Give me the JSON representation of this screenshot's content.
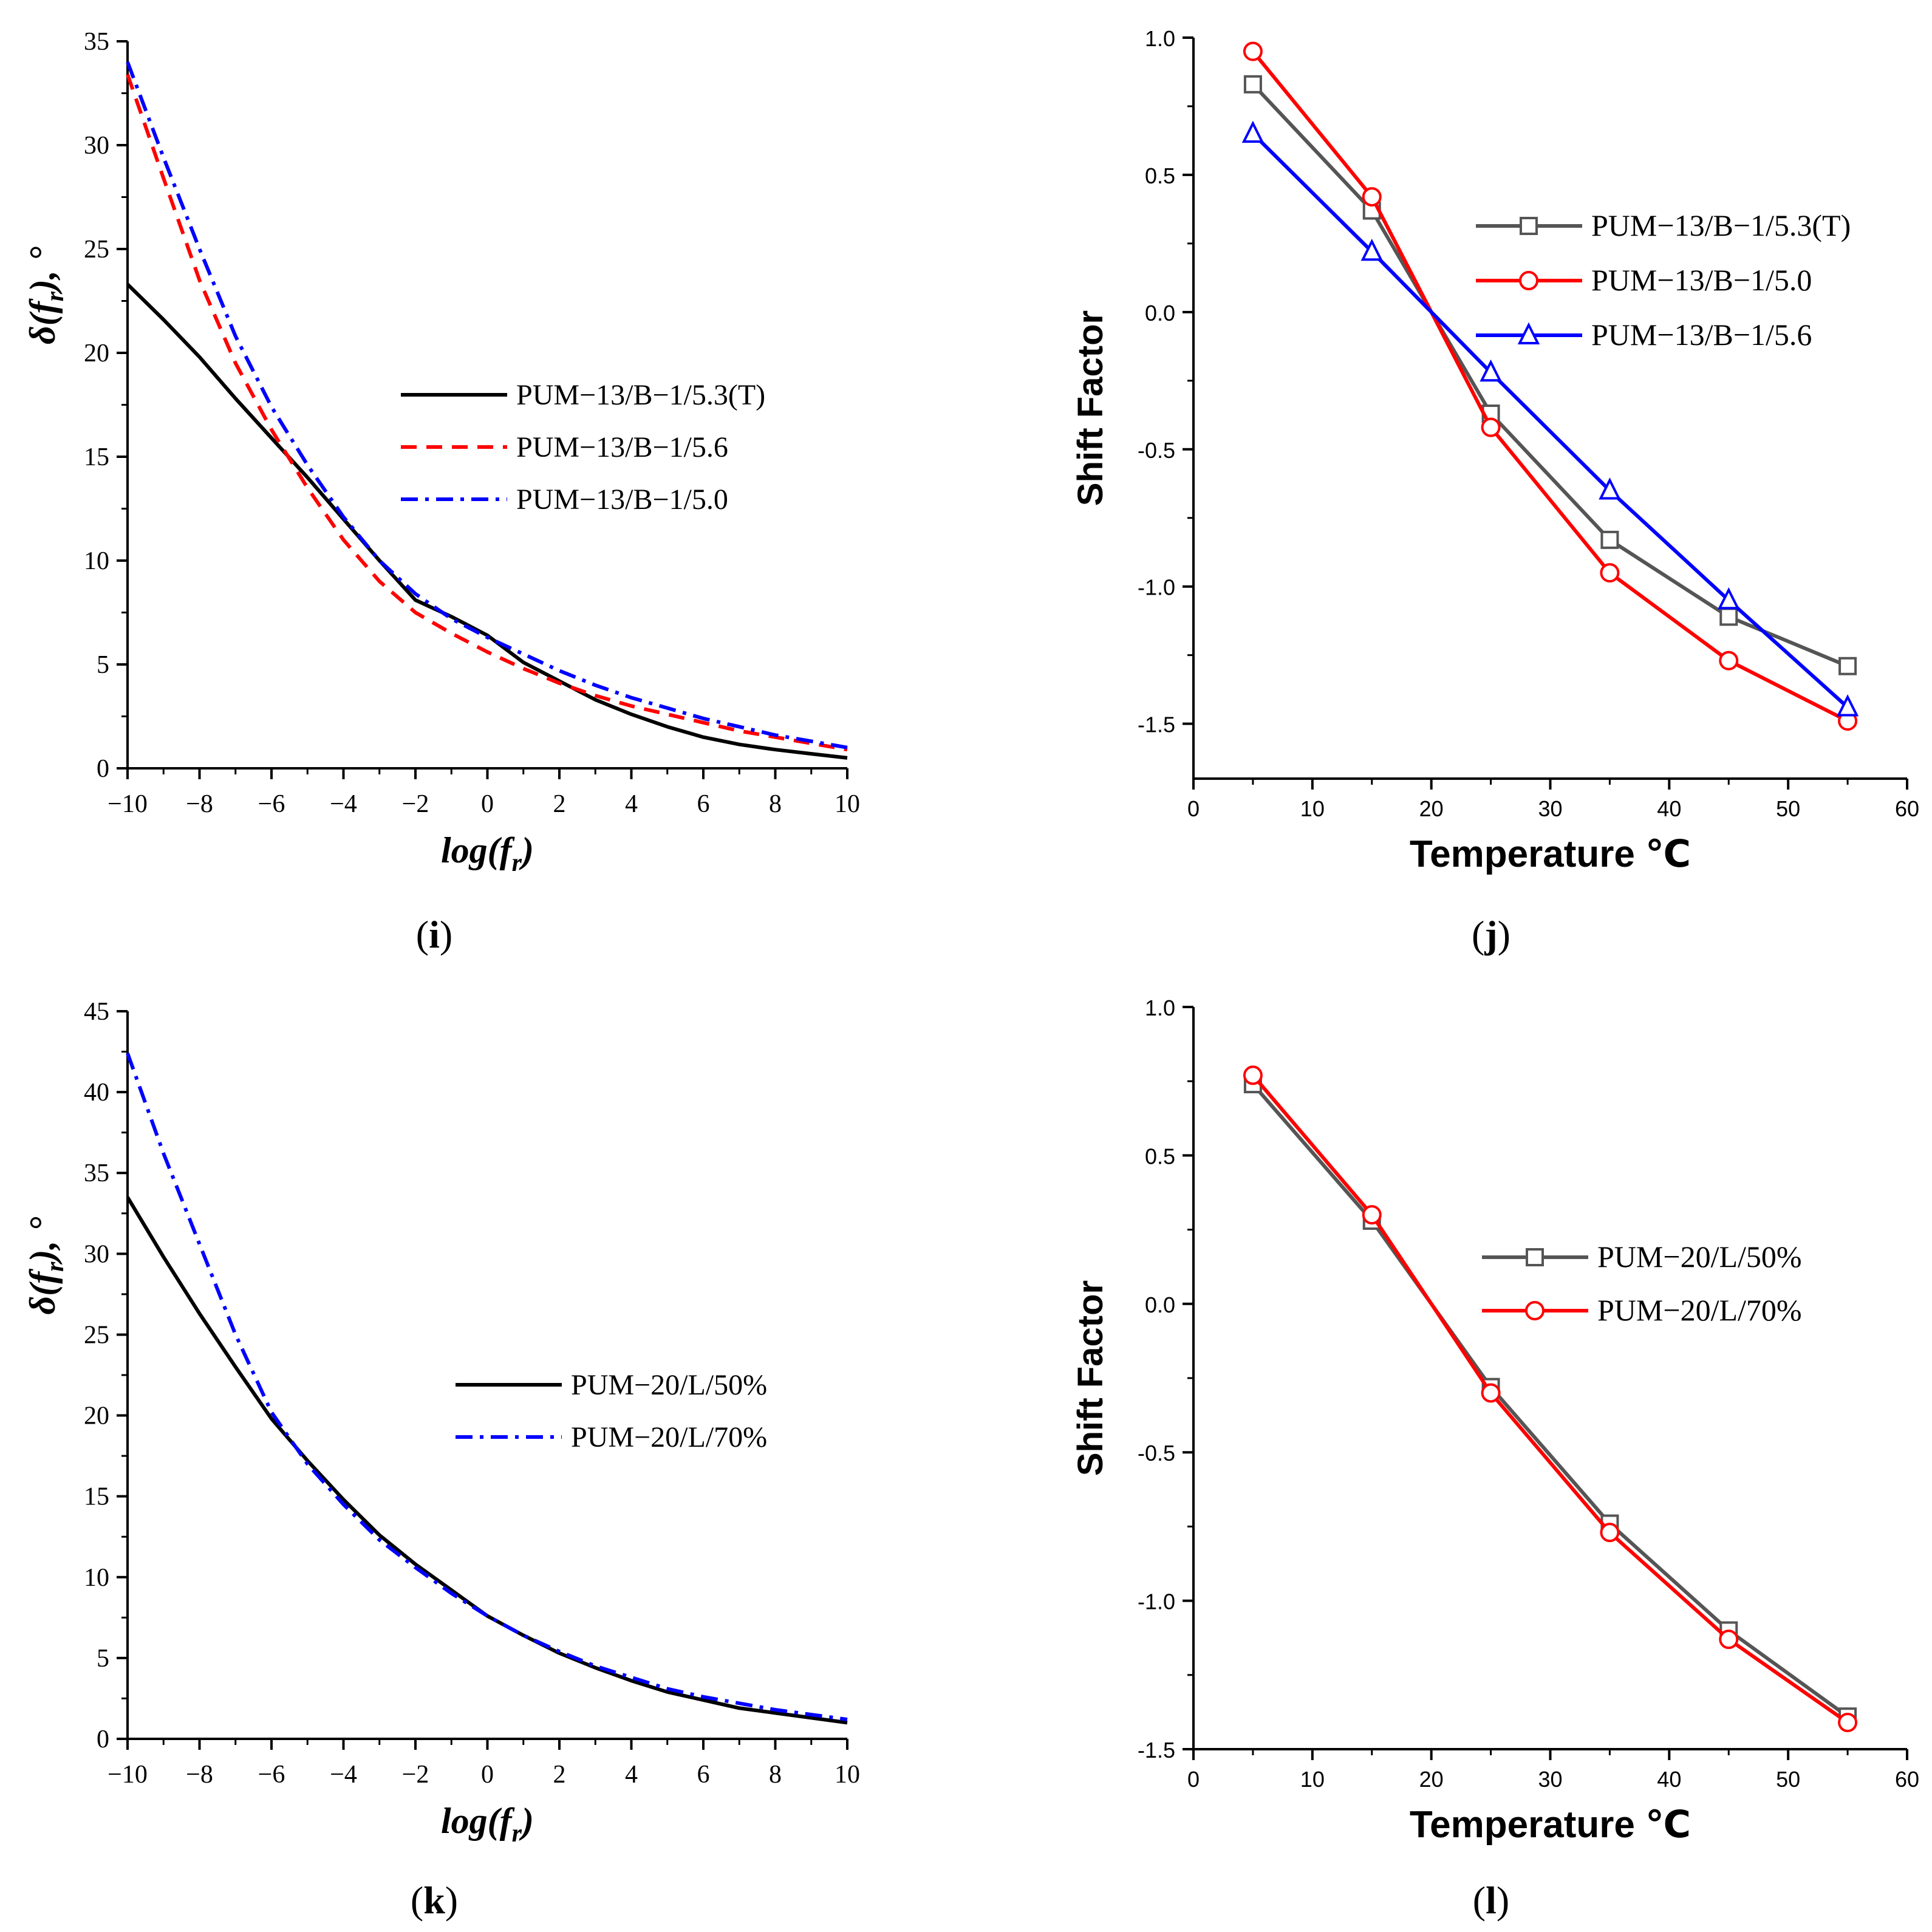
{
  "chart_data": [
    {
      "id": "i",
      "type": "line",
      "panel_label": "i",
      "xlabel": "log(f_r)",
      "ylabel": "δ(f_r), °",
      "xlim": [
        -10,
        10
      ],
      "ylim": [
        0,
        35
      ],
      "xticks": [
        -10,
        -8,
        -6,
        -4,
        -2,
        0,
        2,
        4,
        6,
        8,
        10
      ],
      "yticks": [
        0,
        5,
        10,
        15,
        20,
        25,
        30,
        35
      ],
      "legend_position": "center-right",
      "series": [
        {
          "name": "PUM−13/B−1/5.3(T)",
          "color": "#000000",
          "style": "solid",
          "x": [
            -10,
            -9,
            -8,
            -7,
            -6,
            -5,
            -4,
            -3,
            -2,
            -1,
            0,
            1,
            2,
            3,
            4,
            5,
            6,
            7,
            8,
            9,
            10
          ],
          "y": [
            23.3,
            21.6,
            19.8,
            17.8,
            15.9,
            14.0,
            12.0,
            10.0,
            8.1,
            7.3,
            6.4,
            5.1,
            4.2,
            3.3,
            2.6,
            2.0,
            1.5,
            1.15,
            0.9,
            0.7,
            0.5
          ]
        },
        {
          "name": "PUM−13/B−1/5.6",
          "color": "#ff0000",
          "style": "dashed",
          "x": [
            -10,
            -9,
            -8,
            -7,
            -6,
            -5,
            -4,
            -3,
            -2,
            -1,
            0,
            1,
            2,
            3,
            4,
            5,
            6,
            7,
            8,
            9,
            10
          ],
          "y": [
            33.4,
            28.4,
            23.5,
            19.5,
            16.3,
            13.5,
            11.0,
            9.0,
            7.5,
            6.5,
            5.6,
            4.8,
            4.1,
            3.5,
            3.0,
            2.6,
            2.2,
            1.8,
            1.5,
            1.2,
            0.9
          ]
        },
        {
          "name": "PUM−13/B−1/5.0",
          "color": "#0000ff",
          "style": "dashdot",
          "x": [
            -10,
            -9,
            -8,
            -7,
            -6,
            -5,
            -4,
            -3,
            -2,
            -1,
            0,
            1,
            2,
            3,
            4,
            5,
            6,
            7,
            8,
            9,
            10
          ],
          "y": [
            34.0,
            29.4,
            25.0,
            20.8,
            17.4,
            14.6,
            12.1,
            10.0,
            8.4,
            7.2,
            6.3,
            5.5,
            4.7,
            4.0,
            3.4,
            2.9,
            2.4,
            2.0,
            1.6,
            1.3,
            1.0
          ]
        }
      ]
    },
    {
      "id": "j",
      "type": "line",
      "panel_label": "j",
      "xlabel": "Temperature ℃",
      "ylabel": "Shift Factor",
      "xlim": [
        0,
        60
      ],
      "ylim": [
        -1.7,
        1.0
      ],
      "xticks": [
        0,
        10,
        20,
        30,
        40,
        50,
        60
      ],
      "yticks": [
        -1.5,
        -1.0,
        -0.5,
        0.0,
        0.5,
        1.0
      ],
      "ytick_labels": [
        "-1.5",
        "-1.0",
        "-0.5",
        "0.0",
        "0.5",
        "1.0"
      ],
      "legend_position": "top-right",
      "series": [
        {
          "name": "PUM−13/B−1/5.3(T)",
          "color": "#555555",
          "marker": "square",
          "x": [
            5,
            15,
            25,
            35,
            45,
            55
          ],
          "y": [
            0.83,
            0.37,
            -0.37,
            -0.83,
            -1.11,
            -1.29
          ]
        },
        {
          "name": "PUM−13/B−1/5.0",
          "color": "#ff0000",
          "marker": "circle",
          "x": [
            5,
            15,
            25,
            35,
            45,
            55
          ],
          "y": [
            0.95,
            0.42,
            -0.42,
            -0.95,
            -1.27,
            -1.49
          ]
        },
        {
          "name": "PUM−13/B−1/5.6",
          "color": "#0000ff",
          "marker": "triangle",
          "x": [
            5,
            15,
            25,
            35,
            45,
            55
          ],
          "y": [
            0.65,
            0.22,
            -0.22,
            -0.65,
            -1.05,
            -1.44
          ]
        }
      ]
    },
    {
      "id": "k",
      "type": "line",
      "panel_label": "k",
      "xlabel": "log(f_r)",
      "ylabel": "δ(f_r), °",
      "xlim": [
        -10,
        10
      ],
      "ylim": [
        0,
        45
      ],
      "xticks": [
        -10,
        -8,
        -6,
        -4,
        -2,
        0,
        2,
        4,
        6,
        8,
        10
      ],
      "yticks": [
        0,
        5,
        10,
        15,
        20,
        25,
        30,
        35,
        40,
        45
      ],
      "legend_position": "center-right",
      "series": [
        {
          "name": "PUM−20/L/50%",
          "color": "#000000",
          "style": "solid",
          "x": [
            -10,
            -9,
            -8,
            -7,
            -6,
            -5,
            -4,
            -3,
            -2,
            -1,
            0,
            1,
            2,
            3,
            4,
            5,
            6,
            7,
            8,
            9,
            10
          ],
          "y": [
            33.5,
            29.8,
            26.3,
            23.0,
            19.8,
            17.2,
            14.8,
            12.6,
            10.8,
            9.2,
            7.6,
            6.4,
            5.3,
            4.4,
            3.6,
            2.9,
            2.4,
            1.9,
            1.6,
            1.3,
            1.0
          ]
        },
        {
          "name": "PUM−20/L/70%",
          "color": "#0000ff",
          "style": "dashdot",
          "x": [
            -10,
            -9,
            -8,
            -7,
            -6,
            -5,
            -4,
            -3,
            -2,
            -1,
            0,
            1,
            2,
            3,
            4,
            5,
            6,
            7,
            8,
            9,
            10
          ],
          "y": [
            42.4,
            36.2,
            30.6,
            25.0,
            20.2,
            17.0,
            14.5,
            12.3,
            10.6,
            9.0,
            7.6,
            6.4,
            5.4,
            4.5,
            3.8,
            3.1,
            2.6,
            2.2,
            1.8,
            1.5,
            1.2
          ]
        }
      ]
    },
    {
      "id": "l",
      "type": "line",
      "panel_label": "l",
      "xlabel": "Temperature ℃",
      "ylabel": "Shift Factor",
      "xlim": [
        0,
        60
      ],
      "ylim": [
        -1.5,
        1.0
      ],
      "xticks": [
        0,
        10,
        20,
        30,
        40,
        50,
        60
      ],
      "yticks": [
        -1.5,
        -1.0,
        -0.5,
        0.0,
        0.5,
        1.0
      ],
      "ytick_labels": [
        "-1.5",
        "-1.0",
        "-0.5",
        "0.0",
        "0.5",
        "1.0"
      ],
      "legend_position": "center-right",
      "series": [
        {
          "name": "PUM−20/L/50%",
          "color": "#555555",
          "marker": "square",
          "x": [
            5,
            15,
            25,
            35,
            45,
            55
          ],
          "y": [
            0.74,
            0.28,
            -0.28,
            -0.74,
            -1.1,
            -1.39
          ]
        },
        {
          "name": "PUM−20/L/70%",
          "color": "#ff0000",
          "marker": "circle",
          "x": [
            5,
            15,
            25,
            35,
            45,
            55
          ],
          "y": [
            0.77,
            0.3,
            -0.3,
            -0.77,
            -1.13,
            -1.41
          ]
        }
      ]
    }
  ]
}
